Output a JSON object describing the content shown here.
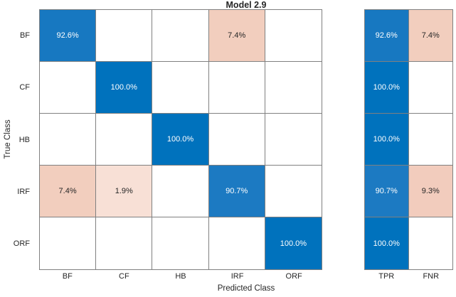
{
  "chart_data": {
    "type": "heatmap",
    "subtype": "confusion-matrix",
    "title": "Model 2.9",
    "xlabel": "Predicted Class",
    "ylabel": "True Class",
    "classes": [
      "BF",
      "CF",
      "HB",
      "IRF",
      "ORF"
    ],
    "summary_columns": [
      "TPR",
      "FNR"
    ],
    "grid": true,
    "legend_position": "none",
    "matrix_percent": [
      [
        92.6,
        null,
        null,
        7.4,
        null
      ],
      [
        null,
        100.0,
        null,
        null,
        null
      ],
      [
        null,
        null,
        100.0,
        null,
        null
      ],
      [
        7.4,
        1.9,
        null,
        90.7,
        null
      ],
      [
        null,
        null,
        null,
        null,
        100.0
      ]
    ],
    "tpr_percent": [
      92.6,
      100.0,
      100.0,
      90.7,
      100.0
    ],
    "fnr_percent": [
      7.4,
      null,
      null,
      9.3,
      null
    ],
    "colors": {
      "diagonal_full": "#0072BD",
      "diagonal_92": "#1778C1",
      "diagonal_90": "#1C7AC2",
      "offdiag_74": "#F2CEBE",
      "offdiag_19": "#F8E0D6",
      "offdiag_93": "#F2CCBD",
      "empty": "#FFFFFF",
      "grid_line": "#808080",
      "text_dark": "#262626",
      "text_light": "#FFFFFF"
    },
    "cells": [
      [
        {
          "label": "92.6%",
          "bg": "#1778C1",
          "fg": "#FFFFFF"
        },
        {
          "label": "",
          "bg": "#FFFFFF",
          "fg": "#262626"
        },
        {
          "label": "",
          "bg": "#FFFFFF",
          "fg": "#262626"
        },
        {
          "label": "7.4%",
          "bg": "#F2CEBE",
          "fg": "#262626"
        },
        {
          "label": "",
          "bg": "#FFFFFF",
          "fg": "#262626"
        }
      ],
      [
        {
          "label": "",
          "bg": "#FFFFFF",
          "fg": "#262626"
        },
        {
          "label": "100.0%",
          "bg": "#0072BD",
          "fg": "#FFFFFF"
        },
        {
          "label": "",
          "bg": "#FFFFFF",
          "fg": "#262626"
        },
        {
          "label": "",
          "bg": "#FFFFFF",
          "fg": "#262626"
        },
        {
          "label": "",
          "bg": "#FFFFFF",
          "fg": "#262626"
        }
      ],
      [
        {
          "label": "",
          "bg": "#FFFFFF",
          "fg": "#262626"
        },
        {
          "label": "",
          "bg": "#FFFFFF",
          "fg": "#262626"
        },
        {
          "label": "100.0%",
          "bg": "#0072BD",
          "fg": "#FFFFFF"
        },
        {
          "label": "",
          "bg": "#FFFFFF",
          "fg": "#262626"
        },
        {
          "label": "",
          "bg": "#FFFFFF",
          "fg": "#262626"
        }
      ],
      [
        {
          "label": "7.4%",
          "bg": "#F2CEBE",
          "fg": "#262626"
        },
        {
          "label": "1.9%",
          "bg": "#F8E0D6",
          "fg": "#262626"
        },
        {
          "label": "",
          "bg": "#FFFFFF",
          "fg": "#262626"
        },
        {
          "label": "90.7%",
          "bg": "#1C7AC2",
          "fg": "#FFFFFF"
        },
        {
          "label": "",
          "bg": "#FFFFFF",
          "fg": "#262626"
        }
      ],
      [
        {
          "label": "",
          "bg": "#FFFFFF",
          "fg": "#262626"
        },
        {
          "label": "",
          "bg": "#FFFFFF",
          "fg": "#262626"
        },
        {
          "label": "",
          "bg": "#FFFFFF",
          "fg": "#262626"
        },
        {
          "label": "",
          "bg": "#FFFFFF",
          "fg": "#262626"
        },
        {
          "label": "100.0%",
          "bg": "#0072BD",
          "fg": "#FFFFFF"
        }
      ]
    ],
    "summary_cells": [
      [
        {
          "label": "92.6%",
          "bg": "#1778C1",
          "fg": "#FFFFFF"
        },
        {
          "label": "7.4%",
          "bg": "#F2CEBE",
          "fg": "#262626"
        }
      ],
      [
        {
          "label": "100.0%",
          "bg": "#0072BD",
          "fg": "#FFFFFF"
        },
        {
          "label": "",
          "bg": "#FFFFFF",
          "fg": "#262626"
        }
      ],
      [
        {
          "label": "100.0%",
          "bg": "#0072BD",
          "fg": "#FFFFFF"
        },
        {
          "label": "",
          "bg": "#FFFFFF",
          "fg": "#262626"
        }
      ],
      [
        {
          "label": "90.7%",
          "bg": "#1C7AC2",
          "fg": "#FFFFFF"
        },
        {
          "label": "9.3%",
          "bg": "#F2CCBD",
          "fg": "#262626"
        }
      ],
      [
        {
          "label": "100.0%",
          "bg": "#0072BD",
          "fg": "#FFFFFF"
        },
        {
          "label": "",
          "bg": "#FFFFFF",
          "fg": "#262626"
        }
      ]
    ]
  }
}
